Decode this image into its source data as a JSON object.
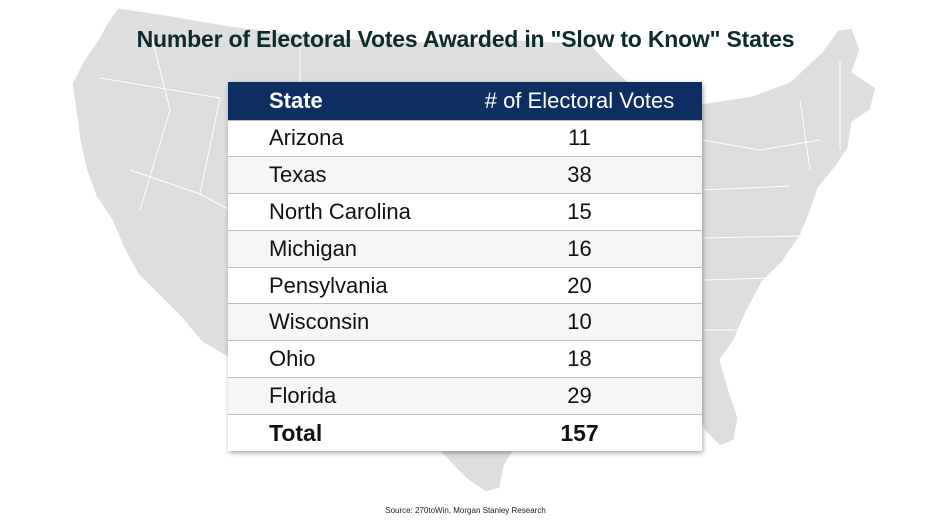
{
  "title": "Number of Electoral Votes Awarded in \"Slow to Know\" States",
  "table": {
    "headers": [
      "State",
      "# of Electoral Votes"
    ],
    "rows": [
      [
        "Arizona",
        "11"
      ],
      [
        "Texas",
        "38"
      ],
      [
        "North Carolina",
        "15"
      ],
      [
        "Michigan",
        "16"
      ],
      [
        "Pensylvania",
        "20"
      ],
      [
        "Wisconsin",
        "10"
      ],
      [
        "Ohio",
        "18"
      ],
      [
        "Florida",
        "29"
      ]
    ],
    "total": [
      "Total",
      "157"
    ]
  },
  "source": "Source: 270toWin, Morgan Stanley Research",
  "colors": {
    "header_bg": "#0d2e61",
    "map_fill": "#dedede",
    "map_lines": "#ffffff",
    "title": "#0e2a2a"
  },
  "chart_data": {
    "type": "table",
    "title": "Number of Electoral Votes Awarded in \"Slow to Know\" States",
    "columns": [
      "State",
      "# of Electoral Votes"
    ],
    "categories": [
      "Arizona",
      "Texas",
      "North Carolina",
      "Michigan",
      "Pensylvania",
      "Wisconsin",
      "Ohio",
      "Florida"
    ],
    "values": [
      11,
      38,
      15,
      16,
      20,
      10,
      18,
      29
    ],
    "total": 157
  }
}
